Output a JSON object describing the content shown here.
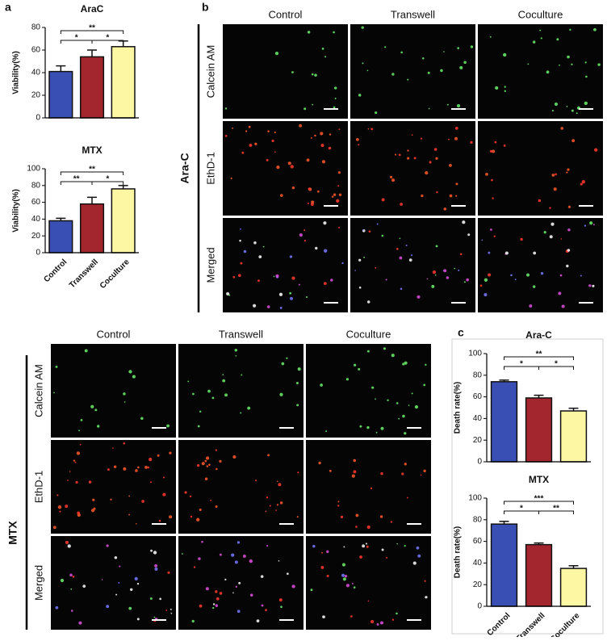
{
  "panel_labels": [
    "a",
    "b",
    "c"
  ],
  "chart_data": [
    {
      "type": "bar",
      "title": "AraC",
      "y_label": "Viability(%)",
      "values": [
        41,
        54,
        63
      ],
      "errors": [
        5,
        6,
        5
      ],
      "colors": [
        "#3a4fb4",
        "#a3262e",
        "#fdf6a3"
      ],
      "ylim": [
        0,
        80
      ],
      "yticks": [
        0,
        20,
        40,
        60,
        80
      ],
      "significance": [
        {
          "between": [
            0,
            1
          ],
          "label": "*"
        },
        {
          "between": [
            0,
            2
          ],
          "label": "**"
        },
        {
          "between": [
            1,
            2
          ],
          "label": "*"
        }
      ]
    },
    {
      "type": "bar",
      "title": "MTX",
      "y_label": "Viability(%)",
      "categories": [
        "Control",
        "Transwell",
        "Coculture"
      ],
      "values": [
        38,
        58,
        76
      ],
      "errors": [
        3,
        8,
        4
      ],
      "colors": [
        "#3a4fb4",
        "#a3262e",
        "#fdf6a3"
      ],
      "ylim": [
        0,
        100
      ],
      "yticks": [
        0,
        20,
        40,
        60,
        80,
        100
      ],
      "significance": [
        {
          "between": [
            0,
            1
          ],
          "label": "**"
        },
        {
          "between": [
            0,
            2
          ],
          "label": "**"
        },
        {
          "between": [
            1,
            2
          ],
          "label": "*"
        }
      ]
    },
    {
      "type": "bar",
      "title": "Ara-C",
      "y_label": "Death rate(%)",
      "values": [
        74,
        59,
        47
      ],
      "errors": [
        1.5,
        2.5,
        2.5
      ],
      "colors": [
        "#3a4fb4",
        "#a3262e",
        "#fdf6a3"
      ],
      "ylim": [
        0,
        100
      ],
      "yticks": [
        0,
        20,
        40,
        60,
        80,
        100
      ],
      "significance": [
        {
          "between": [
            0,
            1
          ],
          "label": "*"
        },
        {
          "between": [
            0,
            2
          ],
          "label": "**"
        },
        {
          "between": [
            1,
            2
          ],
          "label": "*"
        }
      ]
    },
    {
      "type": "bar",
      "title": "MTX",
      "y_label": "Death rate(%)",
      "categories": [
        "Control",
        "Transwell",
        "Coculture"
      ],
      "values": [
        76,
        57,
        35
      ],
      "errors": [
        2.5,
        1.5,
        2.5
      ],
      "colors": [
        "#3a4fb4",
        "#a3262e",
        "#fdf6a3"
      ],
      "ylim": [
        0,
        100
      ],
      "yticks": [
        0,
        20,
        40,
        60,
        80,
        100
      ],
      "significance": [
        {
          "between": [
            0,
            1
          ],
          "label": "*"
        },
        {
          "between": [
            0,
            2
          ],
          "label": "***"
        },
        {
          "between": [
            1,
            2
          ],
          "label": "**"
        }
      ]
    }
  ],
  "image_grids": [
    {
      "group": "Ara-C",
      "columns": [
        "Control",
        "Transwell",
        "Coculture"
      ],
      "rows": [
        "Calcein AM",
        "EthD-1",
        "Merged"
      ]
    },
    {
      "group": "MTX",
      "columns": [
        "Control",
        "Transwell",
        "Coculture"
      ],
      "rows": [
        "Calcein AM",
        "EthD-1",
        "Merged"
      ]
    }
  ]
}
